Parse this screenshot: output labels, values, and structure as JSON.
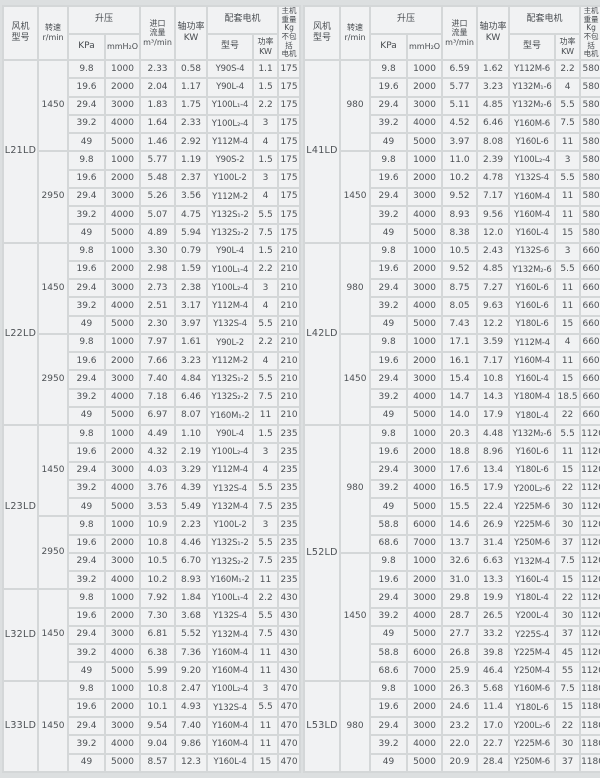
{
  "colors": {
    "page_bg": "#dcdfe0",
    "cell_bg": "#f1f2f3",
    "grid": "#d4d7d8",
    "text": "#4d5155"
  },
  "header": {
    "fan_model": "风机\n型号",
    "speed": "转速\nr/min",
    "pressure": "升压",
    "kpa": "KPa",
    "mmh2o": "mmH₂O",
    "flow": "进口\n流量\nm³/min",
    "shaft_power": "轴功率\nKW",
    "motor": "配套电机",
    "motor_model": "型号",
    "motor_power": "功率KW",
    "weight": "主机重量\nKg\n不包括\n电机"
  },
  "left_table": {
    "sections": [
      {
        "model": "L21LD",
        "groups": [
          {
            "speed": "1450",
            "rows": [
              [
                "9.8",
                "1000",
                "2.33",
                "0.58",
                "Y90S-4",
                "1.1",
                "175"
              ],
              [
                "19.6",
                "2000",
                "2.04",
                "1.17",
                "Y90L-4",
                "1.5",
                "175"
              ],
              [
                "29.4",
                "3000",
                "1.83",
                "1.75",
                "Y100L₁-4",
                "2.2",
                "175"
              ],
              [
                "39.2",
                "4000",
                "1.64",
                "2.33",
                "Y100L₂-4",
                "3",
                "175"
              ],
              [
                "49",
                "5000",
                "1.46",
                "2.92",
                "Y112M-4",
                "4",
                "175"
              ]
            ]
          },
          {
            "speed": "2950",
            "rows": [
              [
                "9.8",
                "1000",
                "5.77",
                "1.19",
                "Y90S-2",
                "1.5",
                "175"
              ],
              [
                "19.6",
                "2000",
                "5.48",
                "2.37",
                "Y100L-2",
                "3",
                "175"
              ],
              [
                "29.4",
                "3000",
                "5.26",
                "3.56",
                "Y112M-2",
                "4",
                "175"
              ],
              [
                "39.2",
                "4000",
                "5.07",
                "4.75",
                "Y132S₁-2",
                "5.5",
                "175"
              ],
              [
                "49",
                "5000",
                "4.89",
                "5.94",
                "Y132S₂-2",
                "7.5",
                "175"
              ]
            ]
          }
        ]
      },
      {
        "model": "L22LD",
        "groups": [
          {
            "speed": "1450",
            "rows": [
              [
                "9.8",
                "1000",
                "3.30",
                "0.79",
                "Y90L-4",
                "1.5",
                "210"
              ],
              [
                "19.6",
                "2000",
                "2.98",
                "1.59",
                "Y100L₁-4",
                "2.2",
                "210"
              ],
              [
                "29.4",
                "3000",
                "2.73",
                "2.38",
                "Y100L₂-4",
                "3",
                "210"
              ],
              [
                "39.2",
                "4000",
                "2.51",
                "3.17",
                "Y112M-4",
                "4",
                "210"
              ],
              [
                "49",
                "5000",
                "2.30",
                "3.97",
                "Y132S-4",
                "5.5",
                "210"
              ]
            ]
          },
          {
            "speed": "2950",
            "rows": [
              [
                "9.8",
                "1000",
                "7.97",
                "1.61",
                "Y90L-2",
                "2.2",
                "210"
              ],
              [
                "19.6",
                "2000",
                "7.66",
                "3.23",
                "Y112M-2",
                "4",
                "210"
              ],
              [
                "29.4",
                "3000",
                "7.40",
                "4.84",
                "Y132S₁-2",
                "5.5",
                "210"
              ],
              [
                "39.2",
                "4000",
                "7.18",
                "6.46",
                "Y132S₂-2",
                "7.5",
                "210"
              ],
              [
                "49",
                "5000",
                "6.97",
                "8.07",
                "Y160M₁-2",
                "11",
                "210"
              ]
            ]
          }
        ]
      },
      {
        "model": "L23LD",
        "groups": [
          {
            "speed": "1450",
            "rows": [
              [
                "9.8",
                "1000",
                "4.49",
                "1.10",
                "Y90L-4",
                "1.5",
                "235"
              ],
              [
                "19.6",
                "2000",
                "4.32",
                "2.19",
                "Y100L₂-4",
                "3",
                "235"
              ],
              [
                "29.4",
                "3000",
                "4.03",
                "3.29",
                "Y112M-4",
                "4",
                "235"
              ],
              [
                "39.2",
                "4000",
                "3.76",
                "4.39",
                "Y132S-4",
                "5.5",
                "235"
              ],
              [
                "49",
                "5000",
                "3.53",
                "5.49",
                "Y132M-4",
                "7.5",
                "235"
              ]
            ]
          },
          {
            "speed": "2950",
            "rows": [
              [
                "9.8",
                "1000",
                "10.9",
                "2.23",
                "Y100L-2",
                "3",
                "235"
              ],
              [
                "19.6",
                "2000",
                "10.8",
                "4.46",
                "Y132S₁-2",
                "5.5",
                "235"
              ],
              [
                "29.4",
                "3000",
                "10.5",
                "6.70",
                "Y132S₂-2",
                "7.5",
                "235"
              ],
              [
                "39.2",
                "4000",
                "10.2",
                "8.93",
                "Y160M₁-2",
                "11",
                "235"
              ]
            ]
          }
        ]
      },
      {
        "model": "L32LD",
        "groups": [
          {
            "speed": "1450",
            "rows": [
              [
                "9.8",
                "1000",
                "7.92",
                "1.84",
                "Y100L₁-4",
                "2.2",
                "430"
              ],
              [
                "19.6",
                "2000",
                "7.30",
                "3.68",
                "Y132S-4",
                "5.5",
                "430"
              ],
              [
                "29.4",
                "3000",
                "6.81",
                "5.52",
                "Y132M-4",
                "7.5",
                "430"
              ],
              [
                "39.2",
                "4000",
                "6.38",
                "7.36",
                "Y160M-4",
                "11",
                "430"
              ],
              [
                "49",
                "5000",
                "5.99",
                "9.20",
                "Y160M-4",
                "11",
                "430"
              ]
            ]
          }
        ]
      },
      {
        "model": "L33LD",
        "groups": [
          {
            "speed": "1450",
            "rows": [
              [
                "9.8",
                "1000",
                "10.8",
                "2.47",
                "Y100L₂-4",
                "3",
                "470"
              ],
              [
                "19.6",
                "2000",
                "10.1",
                "4.93",
                "Y132S-4",
                "5.5",
                "470"
              ],
              [
                "29.4",
                "3000",
                "9.54",
                "7.40",
                "Y160M-4",
                "11",
                "470"
              ],
              [
                "39.2",
                "4000",
                "9.04",
                "9.86",
                "Y160M-4",
                "11",
                "470"
              ],
              [
                "49",
                "5000",
                "8.57",
                "12.3",
                "Y160L-4",
                "15",
                "470"
              ]
            ]
          }
        ]
      }
    ]
  },
  "right_table": {
    "sections": [
      {
        "model": "L41LD",
        "groups": [
          {
            "speed": "980",
            "rows": [
              [
                "9.8",
                "1000",
                "6.59",
                "1.62",
                "Y112M-6",
                "2.2",
                "580"
              ],
              [
                "19.6",
                "2000",
                "5.77",
                "3.23",
                "Y132M₁-6",
                "4",
                "580"
              ],
              [
                "29.4",
                "3000",
                "5.11",
                "4.85",
                "Y132M₂-6",
                "5.5",
                "580"
              ],
              [
                "39.2",
                "4000",
                "4.52",
                "6.46",
                "Y160M-6",
                "7.5",
                "580"
              ],
              [
                "49",
                "5000",
                "3.97",
                "8.08",
                "Y160L-6",
                "11",
                "580"
              ]
            ]
          },
          {
            "speed": "1450",
            "rows": [
              [
                "9.8",
                "1000",
                "11.0",
                "2.39",
                "Y100L₂-4",
                "3",
                "580"
              ],
              [
                "19.6",
                "2000",
                "10.2",
                "4.78",
                "Y132S-4",
                "5.5",
                "580"
              ],
              [
                "29.4",
                "3000",
                "9.52",
                "7.17",
                "Y160M-4",
                "11",
                "580"
              ],
              [
                "39.2",
                "4000",
                "8.93",
                "9.56",
                "Y160M-4",
                "11",
                "580"
              ],
              [
                "49",
                "5000",
                "8.38",
                "12.0",
                "Y160L-4",
                "15",
                "580"
              ]
            ]
          }
        ]
      },
      {
        "model": "L42LD",
        "groups": [
          {
            "speed": "980",
            "rows": [
              [
                "9.8",
                "1000",
                "10.5",
                "2.43",
                "Y132S-6",
                "3",
                "660"
              ],
              [
                "19.6",
                "2000",
                "9.52",
                "4.85",
                "Y132M₂-6",
                "5.5",
                "660"
              ],
              [
                "29.4",
                "3000",
                "8.75",
                "7.27",
                "Y160L-6",
                "11",
                "660"
              ],
              [
                "39.2",
                "4000",
                "8.05",
                "9.63",
                "Y160L-6",
                "11",
                "660"
              ],
              [
                "49",
                "5000",
                "7.43",
                "12.2",
                "Y180L-6",
                "15",
                "660"
              ]
            ]
          },
          {
            "speed": "1450",
            "rows": [
              [
                "9.8",
                "1000",
                "17.1",
                "3.59",
                "Y112M-4",
                "4",
                "660"
              ],
              [
                "19.6",
                "2000",
                "16.1",
                "7.17",
                "Y160M-4",
                "11",
                "660"
              ],
              [
                "29.4",
                "3000",
                "15.4",
                "10.8",
                "Y160L-4",
                "15",
                "660"
              ],
              [
                "39.2",
                "4000",
                "14.7",
                "14.3",
                "Y180M-4",
                "18.5",
                "660"
              ],
              [
                "49",
                "5000",
                "14.0",
                "17.9",
                "Y180L-4",
                "22",
                "660"
              ]
            ]
          }
        ]
      },
      {
        "model": "L52LD",
        "groups": [
          {
            "speed": "980",
            "rows": [
              [
                "9.8",
                "1000",
                "20.3",
                "4.48",
                "Y132M₂-6",
                "5.5",
                "1120"
              ],
              [
                "19.6",
                "2000",
                "18.8",
                "8.96",
                "Y160L-6",
                "11",
                "1120"
              ],
              [
                "29.4",
                "3000",
                "17.6",
                "13.4",
                "Y180L-6",
                "15",
                "1120"
              ],
              [
                "39.2",
                "4000",
                "16.5",
                "17.9",
                "Y200L₂-6",
                "22",
                "1120"
              ],
              [
                "49",
                "5000",
                "15.5",
                "22.4",
                "Y225M-6",
                "30",
                "1120"
              ],
              [
                "58.8",
                "6000",
                "14.6",
                "26.9",
                "Y225M-6",
                "30",
                "1120"
              ],
              [
                "68.6",
                "7000",
                "13.7",
                "31.4",
                "Y250M-6",
                "37",
                "1120"
              ]
            ]
          },
          {
            "speed": "1450",
            "rows": [
              [
                "9.8",
                "1000",
                "32.6",
                "6.63",
                "Y132M-4",
                "7.5",
                "1120"
              ],
              [
                "19.6",
                "2000",
                "31.0",
                "13.3",
                "Y160L-4",
                "15",
                "1120"
              ],
              [
                "29.4",
                "3000",
                "29.8",
                "19.9",
                "Y180L-4",
                "22",
                "1120"
              ],
              [
                "39.2",
                "4000",
                "28.7",
                "26.5",
                "Y200L-4",
                "30",
                "1120"
              ],
              [
                "49",
                "5000",
                "27.7",
                "33.2",
                "Y225S-4",
                "37",
                "1120"
              ],
              [
                "58.8",
                "6000",
                "26.8",
                "39.8",
                "Y225M-4",
                "45",
                "1120"
              ],
              [
                "68.6",
                "7000",
                "25.9",
                "46.4",
                "Y250M-4",
                "55",
                "1120"
              ]
            ]
          }
        ]
      },
      {
        "model": "L53LD",
        "groups": [
          {
            "speed": "980",
            "rows": [
              [
                "9.8",
                "1000",
                "26.3",
                "5.68",
                "Y160M-6",
                "7.5",
                "1180"
              ],
              [
                "19.6",
                "2000",
                "24.6",
                "11.4",
                "Y180L-6",
                "15",
                "1180"
              ],
              [
                "29.4",
                "3000",
                "23.2",
                "17.0",
                "Y200L₂-6",
                "22",
                "1180"
              ],
              [
                "39.2",
                "4000",
                "22.0",
                "22.7",
                "Y225M-6",
                "30",
                "1180"
              ],
              [
                "49",
                "5000",
                "20.9",
                "28.4",
                "Y250M-6",
                "37",
                "1180"
              ]
            ]
          }
        ]
      }
    ]
  }
}
